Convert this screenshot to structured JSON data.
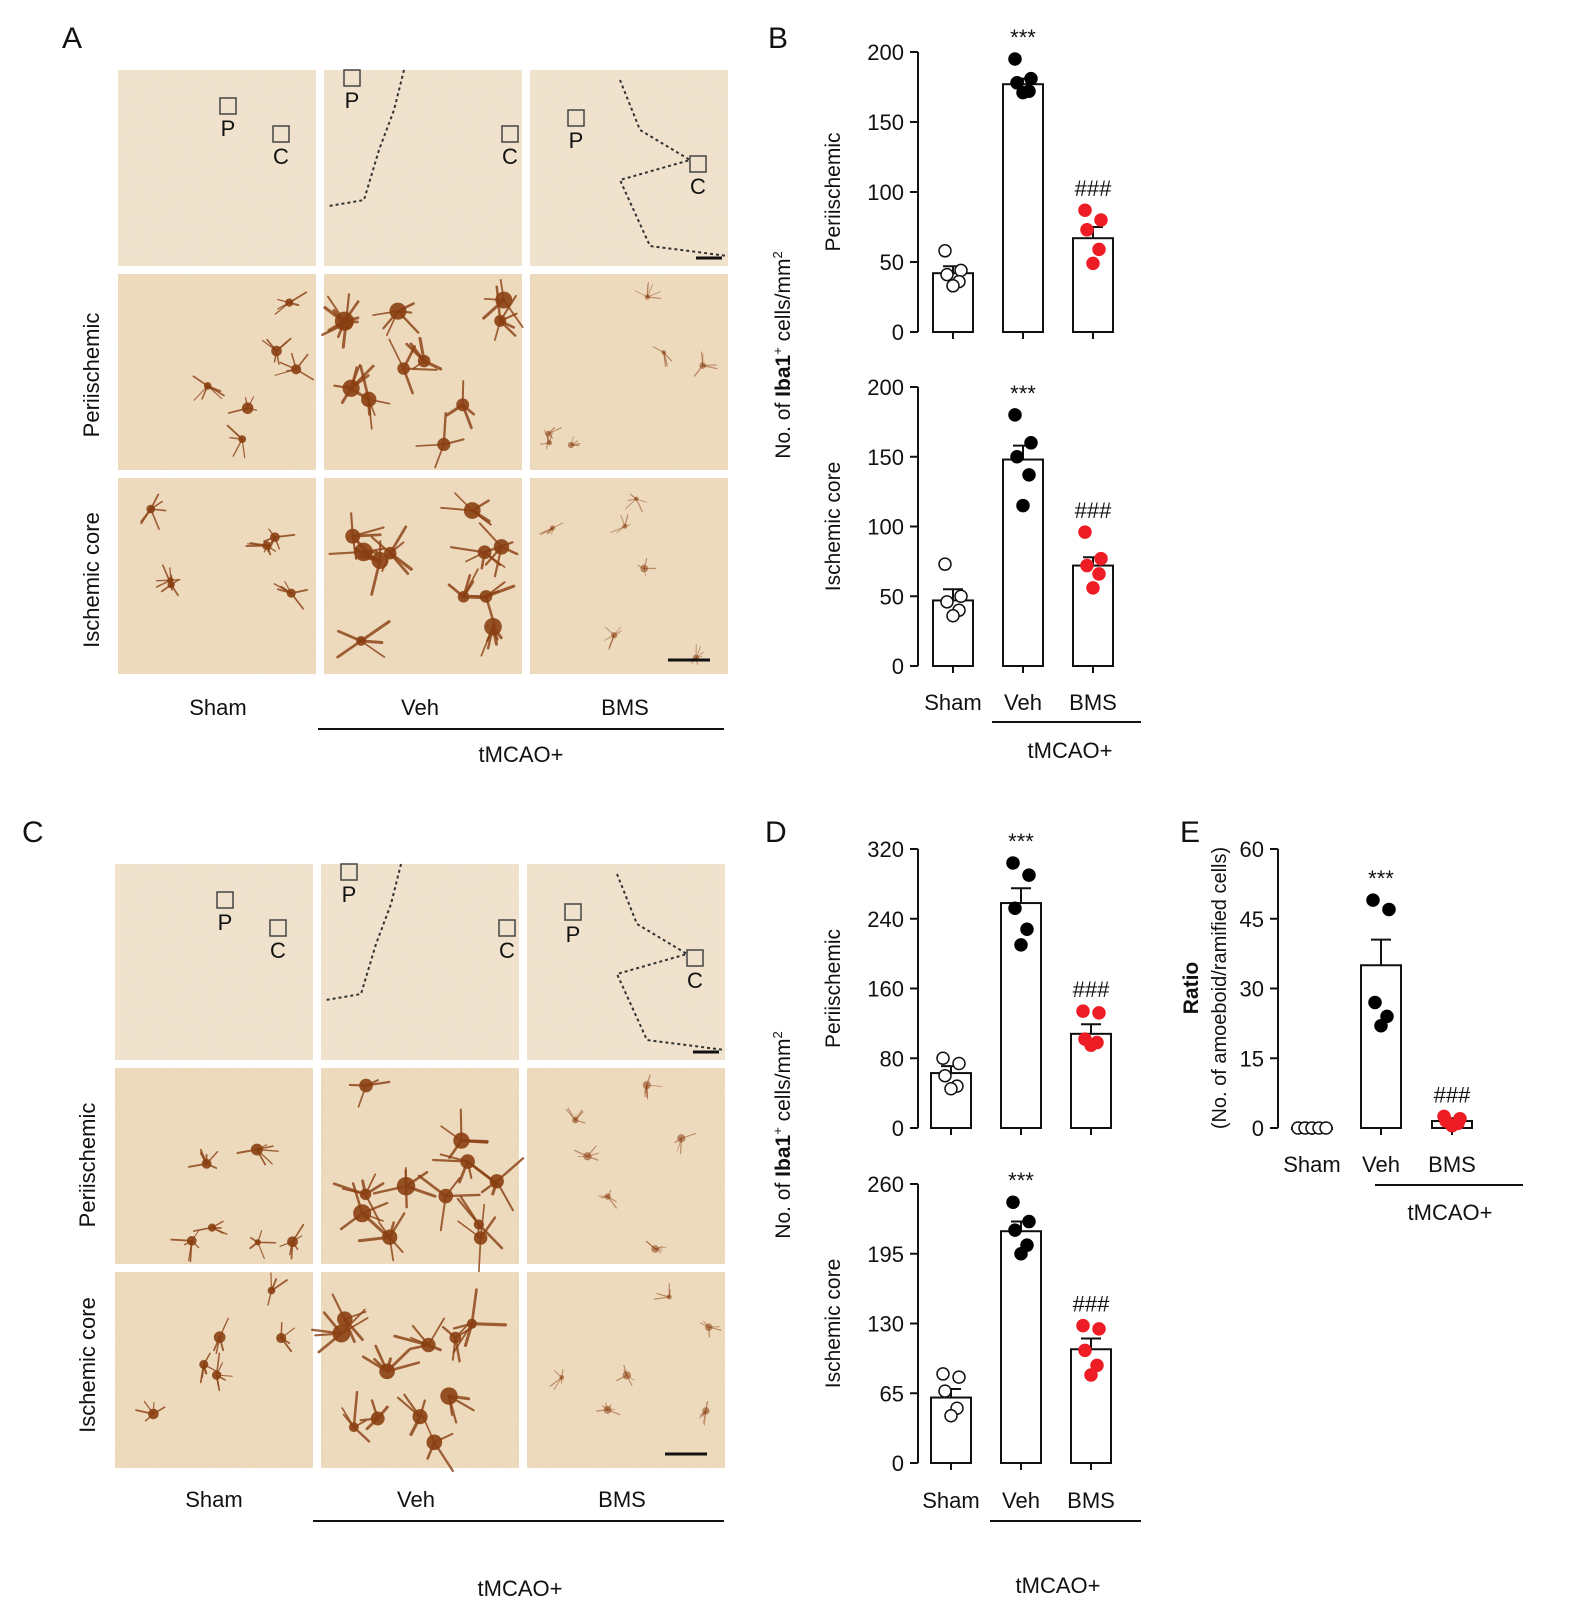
{
  "panels": {
    "A": {
      "letter": "A",
      "row_labels": [
        "Periischemic",
        "Ischemic core"
      ],
      "column_labels": [
        "Sham",
        "Veh",
        "BMS"
      ],
      "group_label": "tMCAO+",
      "overview_markers": [
        [
          "P",
          "C"
        ],
        [
          "P",
          "C"
        ],
        [
          "P",
          "C"
        ]
      ]
    },
    "B": {
      "letter": "B",
      "group_label": "tMCAO+",
      "ylabel_prefix": "No. of ",
      "ylabel_bold": "Iba1",
      "ylabel_sup": "+",
      "ylabel_suffix": " cells/mm",
      "ylabel_sup2": "2"
    },
    "C": {
      "letter": "C",
      "row_labels": [
        "Periischemic",
        "Ischemic core"
      ],
      "column_labels": [
        "Sham",
        "Veh",
        "BMS"
      ],
      "group_label": "tMCAO+",
      "overview_markers": [
        [
          "P",
          "C"
        ],
        [
          "P",
          "C"
        ],
        [
          "P",
          "C"
        ]
      ]
    },
    "D": {
      "letter": "D",
      "group_label": "tMCAO+",
      "ylabel_prefix": "No. of ",
      "ylabel_bold": "Iba1",
      "ylabel_sup": "+",
      "ylabel_suffix": " cells/mm",
      "ylabel_sup2": "2"
    },
    "E": {
      "letter": "E",
      "group_label": "tMCAO+",
      "ylabel_bold": "Ratio",
      "ylabel_sub": "(No. of amoeboid/ramified cells)"
    }
  },
  "colors": {
    "sham_point": "#ffffff",
    "veh_point": "#000000",
    "bms_point": "#ee1c25",
    "stain_background": "#efdcc0",
    "stain_cell": "#8a3f12"
  },
  "chart_data": [
    {
      "id": "B-top",
      "type": "bar",
      "categories": [
        "Sham",
        "Veh",
        "BMS"
      ],
      "ylabel": "Periischemic",
      "ylim": [
        0,
        200
      ],
      "yticks": [
        0,
        50,
        100,
        150,
        200
      ],
      "values": [
        42,
        177,
        67
      ],
      "errors": [
        5,
        4,
        8
      ],
      "points": [
        [
          58,
          44,
          41,
          36,
          33
        ],
        [
          195,
          181,
          178,
          172,
          171
        ],
        [
          87,
          80,
          73,
          59,
          49
        ]
      ],
      "annotations": [
        "",
        "***",
        "###"
      ]
    },
    {
      "id": "B-bottom",
      "type": "bar",
      "categories": [
        "Sham",
        "Veh",
        "BMS"
      ],
      "ylabel": "Ischemic core",
      "ylim": [
        0,
        200
      ],
      "yticks": [
        0,
        50,
        100,
        150,
        200
      ],
      "values": [
        47,
        148,
        72
      ],
      "errors": [
        8,
        10,
        6
      ],
      "points": [
        [
          73,
          50,
          46,
          40,
          36
        ],
        [
          180,
          160,
          150,
          137,
          115
        ],
        [
          96,
          77,
          72,
          66,
          56
        ]
      ],
      "annotations": [
        "",
        "***",
        "###"
      ]
    },
    {
      "id": "D-top",
      "type": "bar",
      "categories": [
        "Sham",
        "Veh",
        "BMS"
      ],
      "ylabel": "Periischemic",
      "ylim": [
        0,
        320
      ],
      "yticks": [
        0,
        80,
        160,
        240,
        320
      ],
      "values": [
        63,
        258,
        108
      ],
      "errors": [
        8,
        17,
        11
      ],
      "points": [
        [
          80,
          74,
          60,
          48,
          45
        ],
        [
          304,
          290,
          252,
          228,
          210
        ],
        [
          134,
          132,
          102,
          98,
          95
        ]
      ],
      "annotations": [
        "",
        "***",
        "###"
      ]
    },
    {
      "id": "D-bottom",
      "type": "bar",
      "categories": [
        "Sham",
        "Veh",
        "BMS"
      ],
      "ylabel": "Ischemic core",
      "ylim": [
        0,
        260
      ],
      "yticks": [
        0,
        65,
        130,
        195,
        260
      ],
      "values": [
        61,
        216,
        106
      ],
      "errors": [
        8,
        9,
        10
      ],
      "points": [
        [
          83,
          80,
          67,
          51,
          44
        ],
        [
          243,
          225,
          217,
          203,
          195
        ],
        [
          128,
          125,
          105,
          91,
          82
        ]
      ],
      "annotations": [
        "",
        "***",
        "###"
      ]
    },
    {
      "id": "E",
      "type": "bar",
      "categories": [
        "Sham",
        "Veh",
        "BMS"
      ],
      "ylim": [
        0,
        60
      ],
      "yticks": [
        0,
        15,
        30,
        45,
        60
      ],
      "values": [
        0,
        35,
        1.5
      ],
      "errors": [
        0,
        5.5,
        0.6
      ],
      "points": [
        [
          0,
          0,
          0,
          0,
          0
        ],
        [
          49,
          47,
          27,
          24,
          22
        ],
        [
          2.5,
          2,
          1.5,
          1,
          0.5
        ]
      ],
      "annotations": [
        "",
        "***",
        "###"
      ]
    }
  ]
}
